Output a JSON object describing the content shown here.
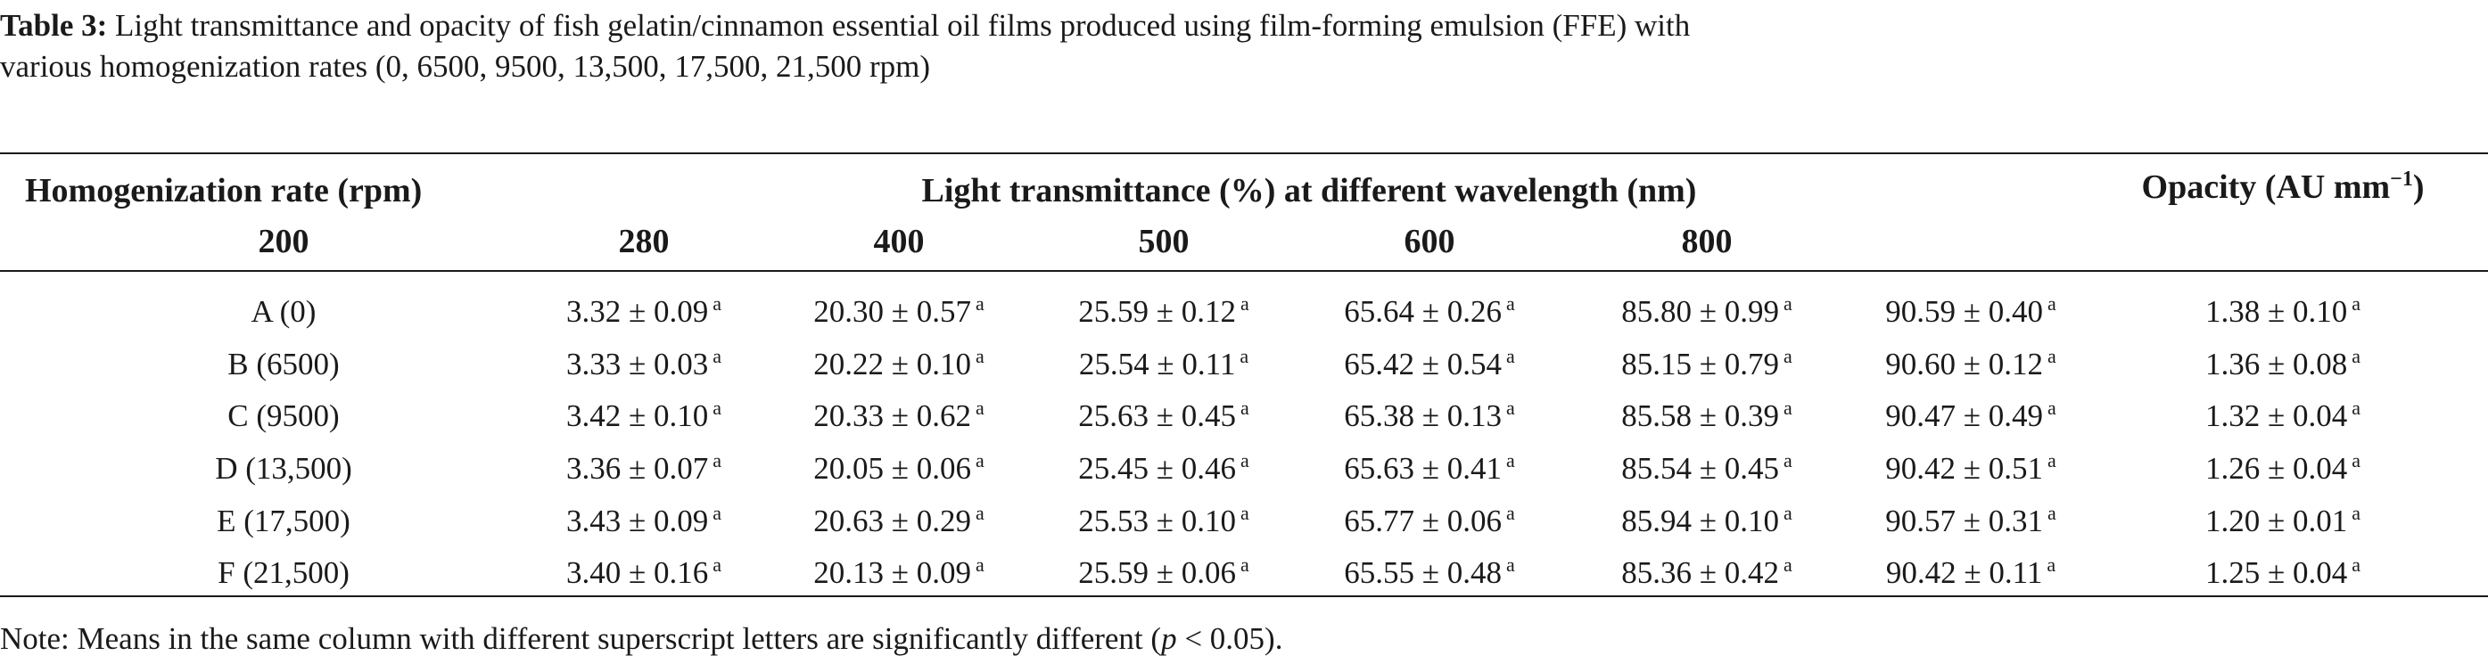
{
  "caption": {
    "label": "Table 3:",
    "text": "Light transmittance and opacity of fish gelatin/cinnamon essential oil films produced using film-forming emulsion (FFE) with various homogenization rates (0, 6500, 9500, 13,500, 17,500, 21,500 rpm)"
  },
  "header": {
    "rate_label": "Homogenization rate (rpm)",
    "transmittance_label": "Light transmittance (%) at different wavelength (nm)",
    "opacity_label": "Opacity (AU mm",
    "opacity_exp": "−1",
    "opacity_close": ")",
    "wavelengths": [
      "200",
      "280",
      "400",
      "500",
      "600",
      "800"
    ]
  },
  "rows": [
    {
      "label": "A (0)",
      "values": [
        "3.32 ± 0.09",
        "20.30 ± 0.57",
        "25.59 ± 0.12",
        "65.64 ± 0.26",
        "85.80 ± 0.99",
        "90.59 ± 0.40"
      ],
      "opacity": "1.38 ± 0.10"
    },
    {
      "label": "B (6500)",
      "values": [
        "3.33 ± 0.03",
        "20.22 ± 0.10",
        "25.54 ± 0.11",
        "65.42 ± 0.54",
        "85.15 ± 0.79",
        "90.60 ± 0.12"
      ],
      "opacity": "1.36 ± 0.08"
    },
    {
      "label": "C (9500)",
      "values": [
        "3.42 ± 0.10",
        "20.33 ± 0.62",
        "25.63 ± 0.45",
        "65.38 ± 0.13",
        "85.58 ± 0.39",
        "90.47 ± 0.49"
      ],
      "opacity": "1.32 ± 0.04"
    },
    {
      "label": "D (13,500)",
      "values": [
        "3.36 ± 0.07",
        "20.05 ± 0.06",
        "25.45 ± 0.46",
        "65.63 ± 0.41",
        "85.54 ± 0.45",
        "90.42 ± 0.51"
      ],
      "opacity": "1.26 ± 0.04"
    },
    {
      "label": "E (17,500)",
      "values": [
        "3.43 ± 0.09",
        "20.63 ± 0.29",
        "25.53 ± 0.10",
        "65.77 ± 0.06",
        "85.94 ± 0.10",
        "90.57 ± 0.31"
      ],
      "opacity": "1.20 ± 0.01"
    },
    {
      "label": "F (21,500)",
      "values": [
        "3.40 ± 0.16",
        "20.13 ± 0.09",
        "25.59 ± 0.06",
        "65.55 ± 0.48",
        "85.36 ± 0.42",
        "90.42 ± 0.11"
      ],
      "opacity": "1.25 ± 0.04"
    }
  ],
  "superscript": "a",
  "note": {
    "prefix": "Note: Means in the same column with different superscript letters are significantly different (",
    "p": "p",
    "suffix": " < 0.05)."
  }
}
